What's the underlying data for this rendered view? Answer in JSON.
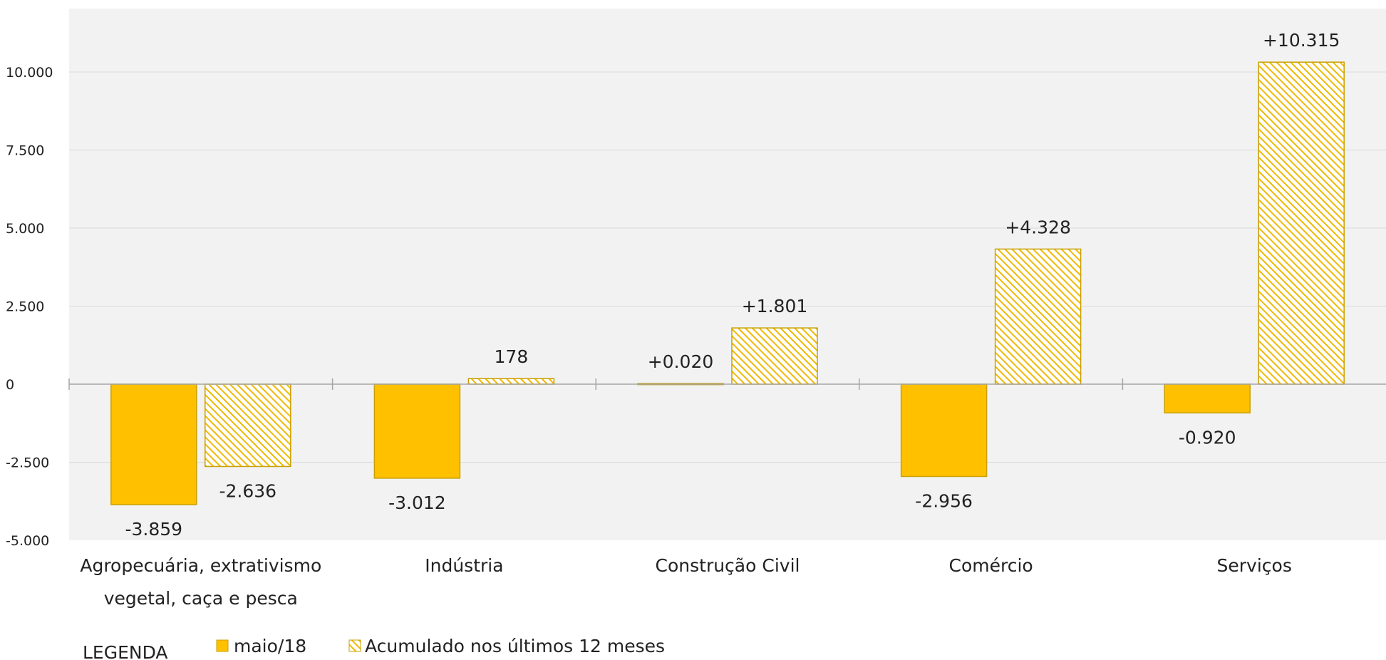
{
  "chart_data": {
    "type": "bar",
    "categories": [
      [
        "Agropecuária, extrativismo",
        "vegetal, caça e pesca"
      ],
      [
        "Indústria"
      ],
      [
        "Construção Civil"
      ],
      [
        "Comércio"
      ],
      [
        "Serviços"
      ]
    ],
    "series": [
      {
        "name": "maio/18",
        "style": "solid",
        "values": [
          -3859,
          -3012,
          20,
          -2956,
          -920
        ],
        "labels": [
          "-3.859",
          "-3.012",
          "+0.020",
          "-2.956",
          "-0.920"
        ]
      },
      {
        "name": "Acumulado nos últimos 12 meses",
        "style": "hatched",
        "values": [
          -2636,
          178,
          1801,
          4328,
          10315
        ],
        "labels": [
          "-2.636",
          "178",
          "+1.801",
          "+4.328",
          "+10.315"
        ]
      }
    ],
    "y_ticks": [
      {
        "value": 10000,
        "label": "10.000"
      },
      {
        "value": 7500,
        "label": "7.500"
      },
      {
        "value": 5000,
        "label": "5.000"
      },
      {
        "value": 2500,
        "label": "2.500"
      },
      {
        "value": 0,
        "label": "0"
      },
      {
        "value": -2500,
        "label": "-2.500"
      },
      {
        "value": -5000,
        "label": "-5.000"
      }
    ],
    "ylim": [
      -5000,
      12000
    ],
    "grid": true,
    "legend": {
      "title": "LEGENDA",
      "position": "bottom-left"
    },
    "colors": {
      "bar_fill": "#FFC000",
      "bar_stroke": "#C9A000",
      "hatch_line": "#F0B800",
      "plot_background": "#F2F2F2",
      "grid": "#D9D9D9",
      "axis": "#A6A6A6"
    }
  }
}
